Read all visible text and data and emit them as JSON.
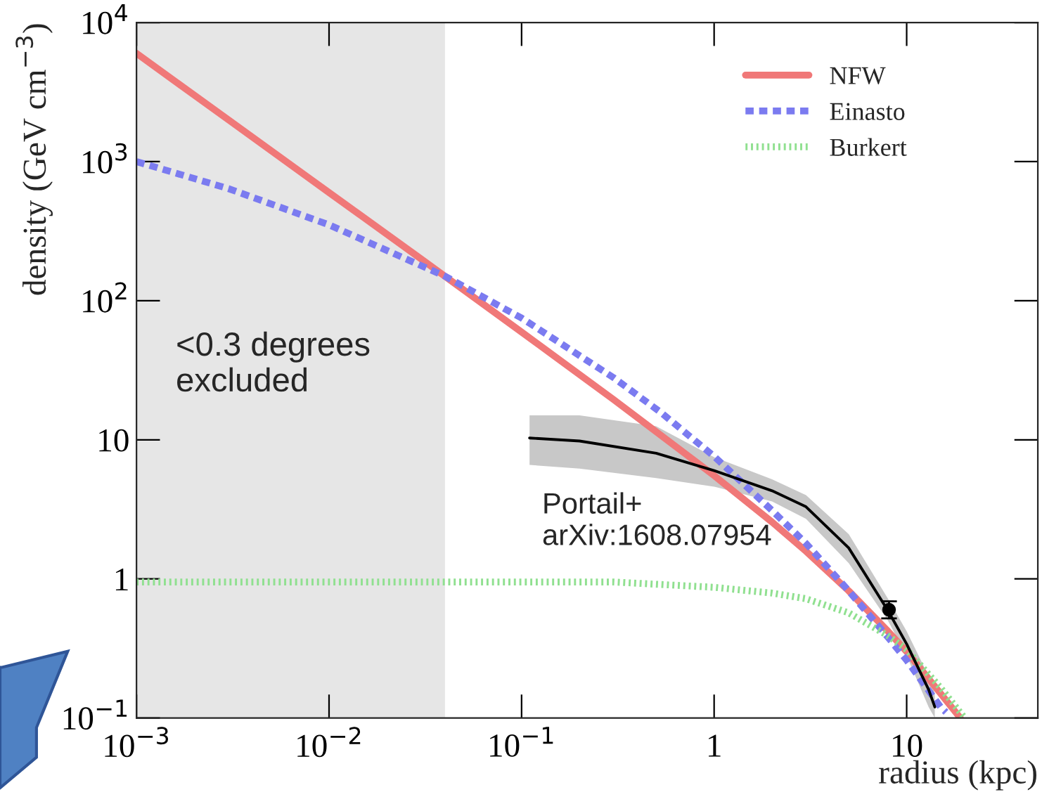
{
  "chart_data": {
    "type": "line",
    "xlabel": "radius (kpc)",
    "ylabel": "density (GeV cm$^{−3}$)",
    "log": "xy",
    "xlim": [
      0.001,
      48
    ],
    "ylim": [
      0.1,
      10000
    ],
    "xticks": [
      {
        "value": 0.001,
        "label": "10$^{−3}$"
      },
      {
        "value": 0.01,
        "label": "10$^{−2}$"
      },
      {
        "value": 0.1,
        "label": "10$^{−1}$"
      },
      1,
      10
    ],
    "yticks": [
      {
        "value": 0.1,
        "label": "10$^{−1}$"
      },
      1,
      10,
      {
        "value": 100,
        "label": "10$^{2}$"
      },
      {
        "value": 1000,
        "label": "10$^{3}$"
      },
      {
        "value": 10000,
        "label": "10$^{4}$"
      }
    ],
    "bands": [
      {
        "axis": "x",
        "from": 0.001,
        "to": 0.04,
        "label": "<0.3 degrees\nexcluded",
        "color": "#e6e6e6"
      }
    ],
    "series": [
      {
        "name": "NFW",
        "color": "#f07878",
        "line_style": "solid",
        "x": [
          0.001,
          0.003,
          0.01,
          0.03,
          0.1,
          0.3,
          1,
          2,
          3,
          5,
          8,
          10,
          15,
          19
        ],
        "values": [
          6000,
          2000,
          599,
          200,
          59.5,
          19.5,
          5.53,
          2.56,
          1.58,
          0.82,
          0.42,
          0.3,
          0.15,
          0.1
        ]
      },
      {
        "name": "Einasto",
        "color": "#7b7bf0",
        "line_style": "dashed",
        "x": [
          0.001,
          0.003,
          0.01,
          0.04,
          0.1,
          0.3,
          0.53,
          1,
          2,
          3,
          5,
          8,
          10,
          15,
          16
        ],
        "values": [
          1000,
          640,
          351,
          150,
          75,
          28,
          15.7,
          7.6,
          3.1,
          1.8,
          0.82,
          0.38,
          0.26,
          0.12,
          0.11
        ]
      },
      {
        "name": "Burkert",
        "color": "#90e090",
        "line_style": "dotted",
        "x": [
          0.001,
          0.01,
          0.1,
          0.3,
          1,
          2,
          3,
          5,
          8,
          10,
          15,
          20
        ],
        "values": [
          0.95,
          0.95,
          0.95,
          0.95,
          0.87,
          0.79,
          0.72,
          0.57,
          0.39,
          0.31,
          0.165,
          0.1
        ]
      },
      {
        "color": "#000000",
        "line_style": "solid",
        "x": [
          0.11,
          0.2,
          0.5,
          1,
          2,
          3,
          5,
          8,
          10,
          13,
          14
        ],
        "values": [
          10.3,
          9.8,
          8.0,
          6.0,
          4.3,
          3.3,
          1.67,
          0.59,
          0.34,
          0.16,
          0.12
        ],
        "lower": [
          6.6,
          6.2,
          5.3,
          4.6,
          3.6,
          2.7,
          1.3,
          0.5,
          0.28,
          0.12,
          0.1
        ],
        "upper": [
          15,
          15,
          12.5,
          7.5,
          5.2,
          4.0,
          2.1,
          0.72,
          0.42,
          0.2,
          0.15
        ]
      },
      {
        "type": "scatter",
        "color": "#000000",
        "marker": "circle",
        "x": [
          8.1
        ],
        "values": [
          0.6
        ],
        "errors": [
          [
            0.52,
            0.69
          ]
        ]
      }
    ],
    "legend": "top right",
    "annotations": [
      "Portail+\narXiv:1608.07954"
    ]
  }
}
